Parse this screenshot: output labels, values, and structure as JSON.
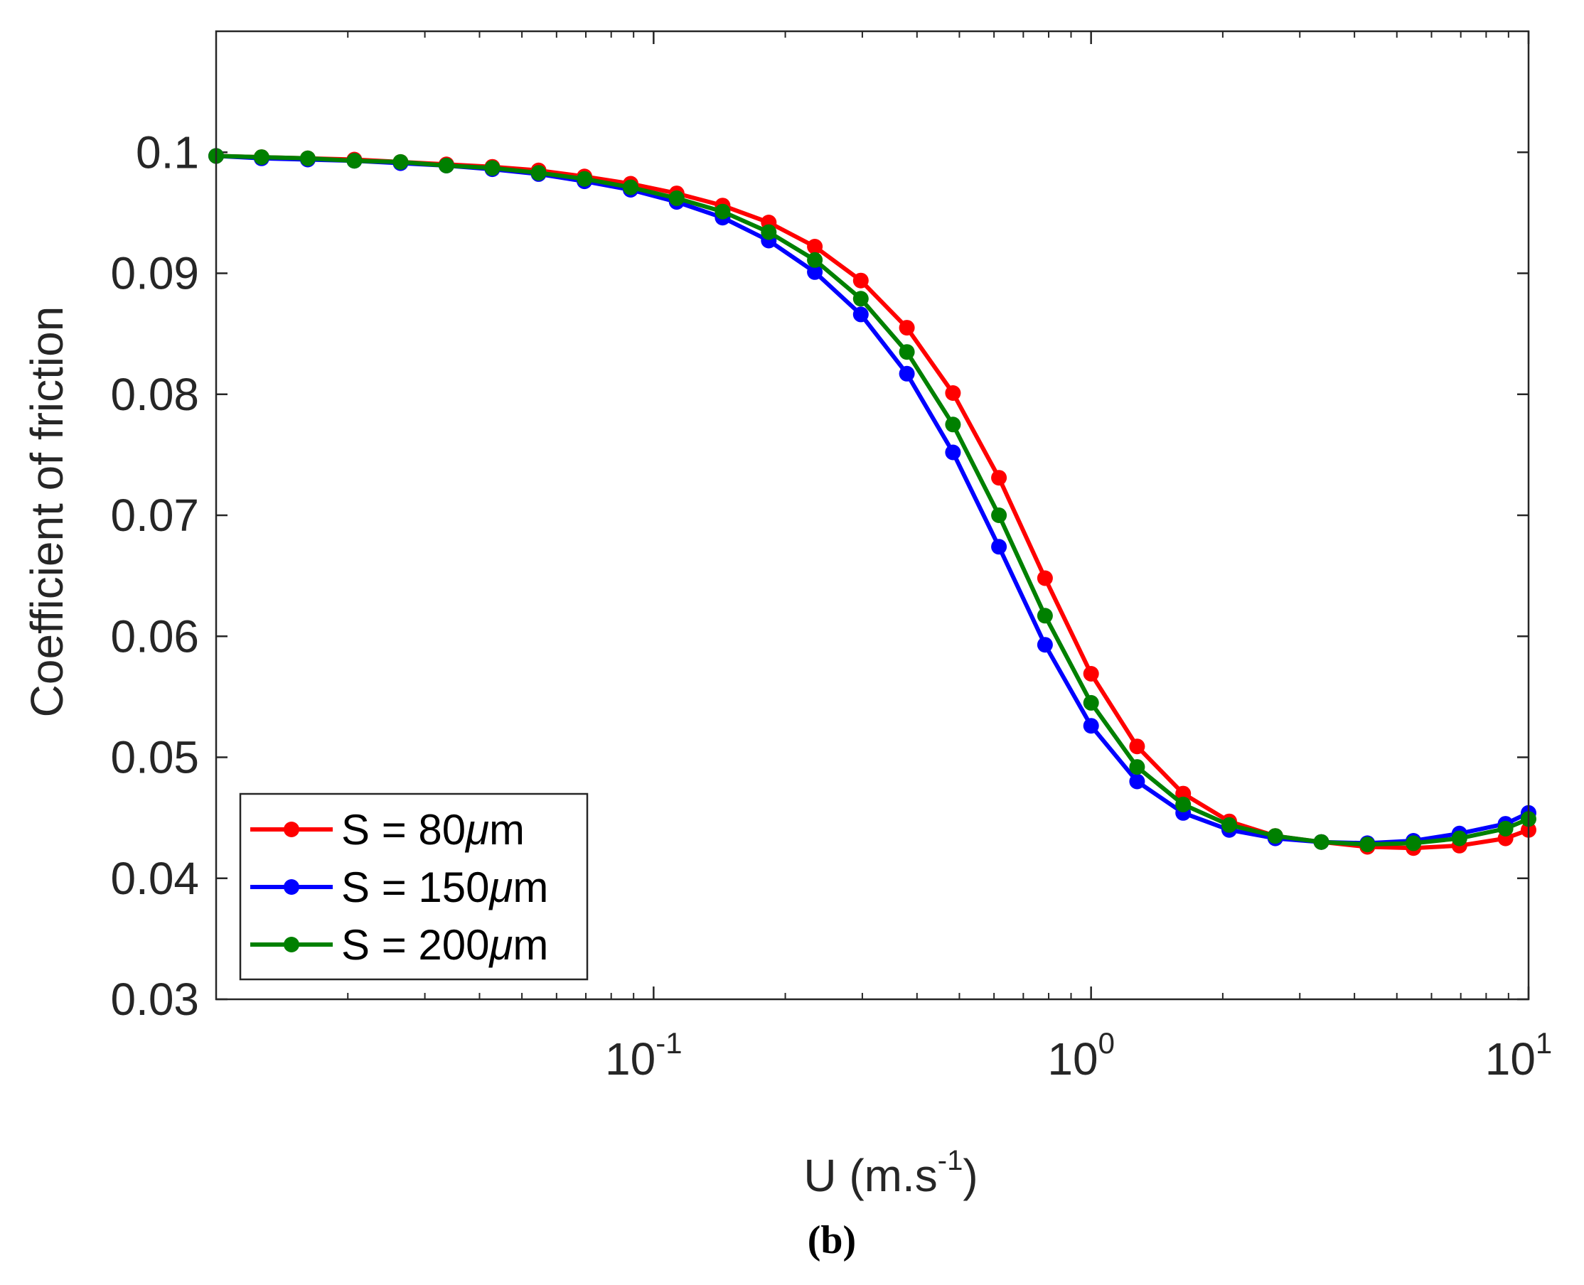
{
  "chart_data": {
    "type": "line",
    "title": "",
    "xlabel": "U (m.s",
    "xlabel_exponent": "-1",
    "xlabel_close": ")",
    "ylabel": "Coefficient of friction",
    "caption": "(b)",
    "xscale": "log",
    "xlim": [
      0.01,
      10
    ],
    "ylim": [
      0.03,
      0.11
    ],
    "x_ticks": [
      {
        "base": "10",
        "exp": "-1",
        "value": 0.1
      },
      {
        "base": "10",
        "exp": "0",
        "value": 1
      },
      {
        "base": "10",
        "exp": "1",
        "value": 10
      }
    ],
    "y_ticks": [
      {
        "label": "0.03",
        "value": 0.03
      },
      {
        "label": "0.04",
        "value": 0.04
      },
      {
        "label": "0.05",
        "value": 0.05
      },
      {
        "label": "0.06",
        "value": 0.06
      },
      {
        "label": "0.07",
        "value": 0.07
      },
      {
        "label": "0.08",
        "value": 0.08
      },
      {
        "label": "0.09",
        "value": 0.09
      },
      {
        "label": "0.1",
        "value": 0.1
      }
    ],
    "legend_location": "bottom-left",
    "x": [
      0.01,
      0.0127,
      0.0162,
      0.0207,
      0.0264,
      0.0336,
      0.0428,
      0.0546,
      0.0695,
      0.0886,
      0.1129,
      0.1438,
      0.1833,
      0.2336,
      0.2976,
      0.3793,
      0.4833,
      0.6158,
      0.7848,
      1.0,
      1.2743,
      1.6238,
      2.0691,
      2.6367,
      3.3598,
      4.2813,
      5.4556,
      6.9519,
      8.8587,
      11.2884
    ],
    "series": [
      {
        "name": "S = 80",
        "unit_symbol": "μ",
        "unit_letter": "m",
        "color": "#ff0000",
        "values": [
          0.0997,
          0.0996,
          0.0995,
          0.0994,
          0.0992,
          0.099,
          0.0988,
          0.0985,
          0.098,
          0.0974,
          0.0966,
          0.0956,
          0.0942,
          0.0922,
          0.0894,
          0.0855,
          0.0801,
          0.0731,
          0.0648,
          0.0569,
          0.0509,
          0.047,
          0.0447,
          0.0435,
          0.043,
          0.0426,
          0.0425,
          0.0427,
          0.0433,
          0.044
        ]
      },
      {
        "name": "S = 150",
        "unit_symbol": "μ",
        "unit_letter": "m",
        "color": "#0000ff",
        "values": [
          0.0997,
          0.0995,
          0.0994,
          0.0993,
          0.0991,
          0.0989,
          0.0986,
          0.0982,
          0.0976,
          0.0969,
          0.0959,
          0.0946,
          0.0927,
          0.0901,
          0.0866,
          0.0817,
          0.0752,
          0.0674,
          0.0593,
          0.0526,
          0.048,
          0.0454,
          0.044,
          0.0433,
          0.043,
          0.0429,
          0.0431,
          0.0437,
          0.0445,
          0.0454
        ]
      },
      {
        "name": "S = 200",
        "unit_symbol": "μ",
        "unit_letter": "m",
        "color": "#008000",
        "values": [
          0.0997,
          0.0996,
          0.0995,
          0.0993,
          0.0992,
          0.0989,
          0.0987,
          0.0983,
          0.0978,
          0.0971,
          0.0962,
          0.0951,
          0.0934,
          0.0911,
          0.0879,
          0.0835,
          0.0775,
          0.07,
          0.0617,
          0.0545,
          0.0492,
          0.0461,
          0.0444,
          0.0435,
          0.043,
          0.0428,
          0.0429,
          0.0433,
          0.0441,
          0.0449
        ]
      }
    ]
  }
}
